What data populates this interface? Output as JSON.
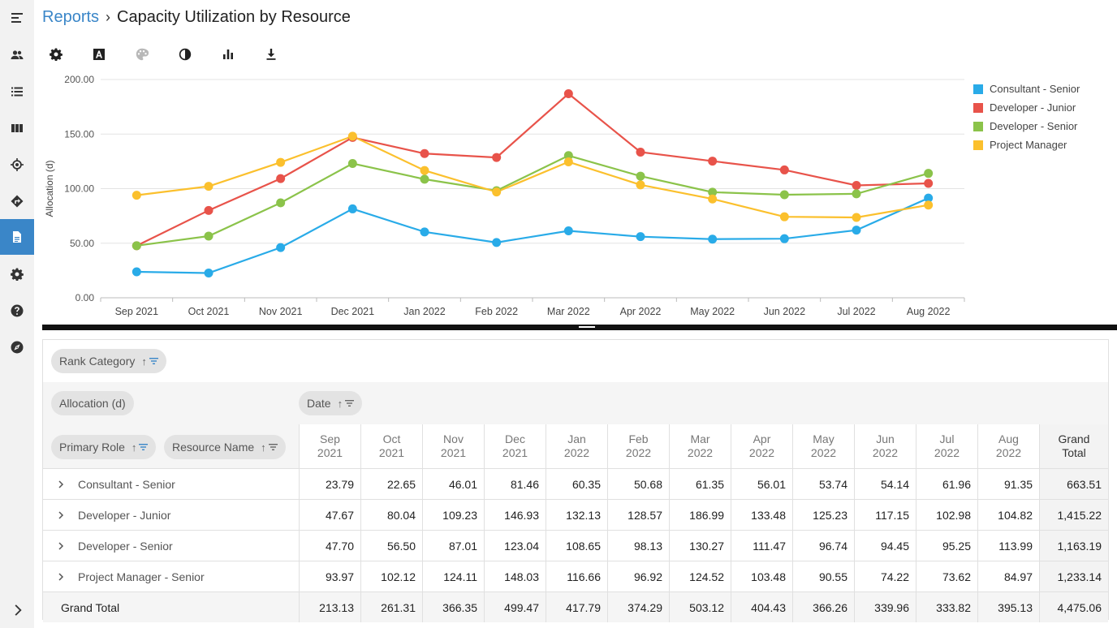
{
  "sidebar": {
    "items": [
      {
        "name": "menu-toggle-icon"
      },
      {
        "name": "people-icon"
      },
      {
        "name": "list-icon"
      },
      {
        "name": "columns-icon"
      },
      {
        "name": "target-icon"
      },
      {
        "name": "directions-icon"
      },
      {
        "name": "report-icon",
        "active": true
      },
      {
        "name": "gear-icon"
      },
      {
        "name": "help-icon"
      },
      {
        "name": "compass-icon"
      }
    ],
    "expand_icon": "chevron-right-icon"
  },
  "breadcrumb": {
    "link": "Reports",
    "separator": "›",
    "title": "Capacity Utilization by Resource"
  },
  "toolbar": {
    "items": [
      {
        "name": "settings-tool-icon"
      },
      {
        "name": "font-tool-icon"
      },
      {
        "name": "palette-tool-icon",
        "disabled": true
      },
      {
        "name": "contrast-tool-icon"
      },
      {
        "name": "bar-chart-tool-icon"
      },
      {
        "name": "download-tool-icon"
      }
    ]
  },
  "chart_data": {
    "type": "line",
    "ylabel": "Allocation (d)",
    "ylim": [
      0,
      200
    ],
    "yticks": [
      "0.00",
      "50.00",
      "100.00",
      "150.00",
      "200.00"
    ],
    "categories": [
      "Sep 2021",
      "Oct 2021",
      "Nov 2021",
      "Dec 2021",
      "Jan 2022",
      "Feb 2022",
      "Mar 2022",
      "Apr 2022",
      "May 2022",
      "Jun 2022",
      "Jul 2022",
      "Aug 2022"
    ],
    "legend_position": "right",
    "grid": true,
    "series": [
      {
        "name": "Consultant - Senior",
        "color": "#29abe8",
        "values": [
          23.79,
          22.65,
          46.01,
          81.46,
          60.35,
          50.68,
          61.35,
          56.01,
          53.74,
          54.14,
          61.96,
          91.35
        ]
      },
      {
        "name": "Developer - Junior",
        "color": "#e8534a",
        "values": [
          47.67,
          80.04,
          109.23,
          146.93,
          132.13,
          128.57,
          186.99,
          133.48,
          125.23,
          117.15,
          102.98,
          104.82
        ]
      },
      {
        "name": "Developer - Senior",
        "color": "#8bc34a",
        "values": [
          47.7,
          56.5,
          87.01,
          123.04,
          108.65,
          98.13,
          130.27,
          111.47,
          96.74,
          94.45,
          95.25,
          113.99
        ]
      },
      {
        "name": "Project Manager",
        "color": "#fbc02d",
        "values": [
          93.97,
          102.12,
          124.11,
          148.03,
          116.66,
          96.92,
          124.52,
          103.48,
          90.55,
          74.22,
          73.62,
          84.97
        ]
      }
    ]
  },
  "pivot": {
    "filter_chip": "Rank Category",
    "value_chip": "Allocation (d)",
    "column_chip": "Date",
    "row_chips": [
      "Primary Role",
      "Resource Name"
    ],
    "columns": [
      "Sep\n2021",
      "Oct\n2021",
      "Nov\n2021",
      "Dec\n2021",
      "Jan\n2022",
      "Feb\n2022",
      "Mar\n2022",
      "Apr\n2022",
      "May\n2022",
      "Jun\n2022",
      "Jul\n2022",
      "Aug\n2022"
    ],
    "total_column": "Grand\nTotal",
    "rows": [
      {
        "label": "Consultant - Senior",
        "values": [
          "23.79",
          "22.65",
          "46.01",
          "81.46",
          "60.35",
          "50.68",
          "61.35",
          "56.01",
          "53.74",
          "54.14",
          "61.96",
          "91.35"
        ],
        "total": "663.51"
      },
      {
        "label": "Developer - Junior",
        "values": [
          "47.67",
          "80.04",
          "109.23",
          "146.93",
          "132.13",
          "128.57",
          "186.99",
          "133.48",
          "125.23",
          "117.15",
          "102.98",
          "104.82"
        ],
        "total": "1,415.22"
      },
      {
        "label": "Developer - Senior",
        "values": [
          "47.70",
          "56.50",
          "87.01",
          "123.04",
          "108.65",
          "98.13",
          "130.27",
          "111.47",
          "96.74",
          "94.45",
          "95.25",
          "113.99"
        ],
        "total": "1,163.19"
      },
      {
        "label": "Project Manager - Senior",
        "values": [
          "93.97",
          "102.12",
          "124.11",
          "148.03",
          "116.66",
          "96.92",
          "124.52",
          "103.48",
          "90.55",
          "74.22",
          "73.62",
          "84.97"
        ],
        "total": "1,233.14"
      }
    ],
    "grand_total": {
      "label": "Grand Total",
      "values": [
        "213.13",
        "261.31",
        "366.35",
        "499.47",
        "417.79",
        "374.29",
        "503.12",
        "404.43",
        "366.26",
        "339.96",
        "333.82",
        "395.13"
      ],
      "total": "4,475.06"
    }
  }
}
